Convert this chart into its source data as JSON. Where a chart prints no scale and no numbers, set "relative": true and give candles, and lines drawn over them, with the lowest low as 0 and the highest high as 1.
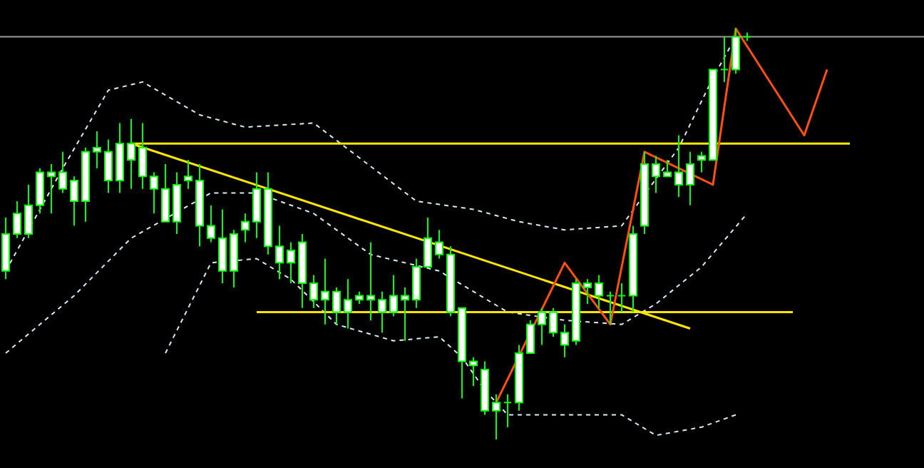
{
  "chart_data": {
    "type": "candlestick",
    "relative": true,
    "color": "#00ff00",
    "tick_labels": false,
    "categories": [
      null,
      null,
      null,
      null,
      null,
      null,
      null,
      null,
      null,
      null,
      null,
      null,
      null,
      null,
      null,
      null,
      null,
      null,
      null,
      null,
      null,
      null,
      null,
      null,
      null,
      null,
      null,
      null,
      null,
      null,
      null,
      null,
      null,
      null,
      null,
      null,
      null,
      null,
      null,
      null,
      null,
      null,
      null,
      null,
      null,
      null,
      null,
      null,
      null,
      null,
      null,
      null,
      null,
      null,
      null,
      null,
      null,
      null,
      null,
      null,
      null,
      null,
      null,
      null,
      null,
      null,
      null,
      null,
      null,
      null,
      null,
      null,
      null,
      null,
      null,
      null,
      null,
      null,
      null,
      null,
      null
    ],
    "ohlc": [
      [
        0.41,
        0.54,
        0.39,
        0.5
      ],
      [
        0.5,
        0.58,
        0.49,
        0.55
      ],
      [
        0.5,
        0.62,
        0.49,
        0.57
      ],
      [
        0.57,
        0.66,
        0.55,
        0.65
      ],
      [
        0.64,
        0.67,
        0.55,
        0.65
      ],
      [
        0.61,
        0.7,
        0.6,
        0.65
      ],
      [
        0.58,
        0.64,
        0.52,
        0.63
      ],
      [
        0.58,
        0.71,
        0.53,
        0.7
      ],
      [
        0.7,
        0.75,
        0.66,
        0.71
      ],
      [
        0.63,
        0.73,
        0.6,
        0.7
      ],
      [
        0.63,
        0.77,
        0.6,
        0.72
      ],
      [
        0.68,
        0.78,
        0.61,
        0.72
      ],
      [
        0.64,
        0.77,
        0.61,
        0.71
      ],
      [
        0.61,
        0.65,
        0.55,
        0.64
      ],
      [
        0.53,
        0.67,
        0.53,
        0.61
      ],
      [
        0.53,
        0.65,
        0.5,
        0.62
      ],
      [
        0.63,
        0.68,
        0.61,
        0.64
      ],
      [
        0.52,
        0.67,
        0.47,
        0.63
      ],
      [
        0.49,
        0.57,
        0.48,
        0.52
      ],
      [
        0.41,
        0.56,
        0.38,
        0.49
      ],
      [
        0.41,
        0.51,
        0.37,
        0.5
      ],
      [
        0.51,
        0.55,
        0.48,
        0.53
      ],
      [
        0.53,
        0.65,
        0.49,
        0.61
      ],
      [
        0.47,
        0.65,
        0.45,
        0.61
      ],
      [
        0.43,
        0.52,
        0.39,
        0.47
      ],
      [
        0.43,
        0.48,
        0.38,
        0.46
      ],
      [
        0.38,
        0.5,
        0.32,
        0.48
      ],
      [
        0.34,
        0.4,
        0.32,
        0.38
      ],
      [
        0.34,
        0.44,
        0.28,
        0.36
      ],
      [
        0.31,
        0.37,
        0.28,
        0.36
      ],
      [
        0.31,
        0.39,
        0.27,
        0.34
      ],
      [
        0.34,
        0.36,
        0.33,
        0.35
      ],
      [
        0.34,
        0.48,
        0.29,
        0.35
      ],
      [
        0.31,
        0.36,
        0.26,
        0.34
      ],
      [
        0.31,
        0.4,
        0.3,
        0.35
      ],
      [
        0.34,
        0.37,
        0.24,
        0.35
      ],
      [
        0.34,
        0.44,
        0.32,
        0.42
      ],
      [
        0.42,
        0.54,
        0.42,
        0.49
      ],
      [
        0.45,
        0.51,
        0.44,
        0.48
      ],
      [
        0.31,
        0.47,
        0.3,
        0.45
      ],
      [
        0.19,
        0.32,
        0.1,
        0.32
      ],
      [
        0.18,
        0.2,
        0.13,
        0.19
      ],
      [
        0.07,
        0.19,
        0.06,
        0.17
      ],
      [
        0.07,
        0.11,
        0.0,
        0.09
      ],
      [
        0.09,
        0.11,
        0.03,
        0.09
      ],
      [
        0.09,
        0.23,
        0.07,
        0.21
      ],
      [
        0.21,
        0.29,
        0.21,
        0.28
      ],
      [
        0.28,
        0.32,
        0.23,
        0.31
      ],
      [
        0.26,
        0.32,
        0.25,
        0.31
      ],
      [
        0.23,
        0.28,
        0.2,
        0.26
      ],
      [
        0.24,
        0.39,
        0.23,
        0.38
      ],
      [
        0.37,
        0.39,
        0.33,
        0.38
      ],
      [
        0.35,
        0.4,
        0.32,
        0.38
      ],
      [
        0.35,
        0.36,
        0.28,
        0.35
      ],
      [
        0.35,
        0.38,
        0.31,
        0.35
      ],
      [
        0.35,
        0.52,
        0.31,
        0.5
      ],
      [
        0.52,
        0.7,
        0.5,
        0.67
      ],
      [
        0.64,
        0.69,
        0.6,
        0.67
      ],
      [
        0.64,
        0.68,
        0.64,
        0.65
      ],
      [
        0.62,
        0.74,
        0.59,
        0.65
      ],
      [
        0.62,
        0.7,
        0.57,
        0.67
      ],
      [
        0.68,
        0.7,
        0.65,
        0.69
      ],
      [
        0.68,
        0.9,
        0.68,
        0.9
      ],
      [
        0.9,
        0.98,
        0.87,
        0.9
      ],
      [
        0.9,
        1.0,
        0.89,
        0.98
      ],
      [
        0.98,
        0.99,
        0.97,
        0.98
      ],
      null,
      null,
      null,
      null,
      null,
      null,
      null,
      null,
      null,
      null,
      null,
      null,
      null,
      null,
      null
    ],
    "series": [
      {
        "type": "line",
        "color": "#d8ecf4",
        "line_style": "dashed",
        "values": [
          0.41,
          null,
          null,
          null,
          null,
          0.66,
          null,
          null,
          null,
          0.85,
          null,
          null,
          0.87,
          null,
          null,
          null,
          null,
          0.79,
          null,
          null,
          null,
          0.76,
          null,
          null,
          null,
          null,
          null,
          0.77,
          null,
          null,
          null,
          null,
          null,
          null,
          null,
          null,
          0.58,
          null,
          null,
          null,
          null,
          0.56,
          null,
          null,
          null,
          0.53,
          null,
          null,
          null,
          0.51,
          null,
          null,
          null,
          null,
          0.52,
          null,
          null,
          null,
          null,
          0.71,
          null,
          null,
          0.88,
          null,
          0.98,
          null,
          null,
          null,
          null,
          null,
          null,
          null,
          null,
          null,
          null,
          null,
          null,
          null,
          null,
          null,
          null
        ]
      },
      {
        "type": "line",
        "color": "#d8ecf4",
        "line_style": "dashed",
        "values": [
          0.21,
          null,
          null,
          null,
          null,
          null,
          0.35,
          null,
          null,
          null,
          null,
          0.49,
          null,
          null,
          null,
          null,
          null,
          null,
          0.6,
          null,
          null,
          null,
          0.6,
          null,
          null,
          null,
          null,
          0.55,
          null,
          null,
          null,
          null,
          0.45,
          null,
          null,
          null,
          null,
          null,
          0.41,
          null,
          null,
          null,
          null,
          null,
          0.31,
          null,
          null,
          null,
          null,
          0.29,
          null,
          null,
          null,
          null,
          0.28,
          null,
          null,
          0.33,
          null,
          null,
          null,
          0.42,
          null,
          null,
          null,
          0.55,
          null,
          null,
          null,
          null,
          null,
          null,
          null,
          null,
          null,
          null,
          null,
          null,
          null,
          null,
          null
        ]
      },
      {
        "type": "line",
        "color": "#d8ecf4",
        "line_style": "dashed",
        "values": [
          null,
          null,
          null,
          null,
          null,
          null,
          null,
          null,
          null,
          null,
          null,
          null,
          null,
          null,
          0.21,
          null,
          null,
          null,
          0.43,
          null,
          null,
          null,
          0.44,
          null,
          null,
          0.39,
          null,
          null,
          null,
          0.28,
          null,
          null,
          null,
          null,
          0.24,
          null,
          null,
          null,
          0.25,
          null,
          0.2,
          null,
          0.12,
          null,
          0.06,
          null,
          null,
          null,
          null,
          0.06,
          null,
          null,
          null,
          null,
          0.06,
          null,
          null,
          0.01,
          null,
          null,
          null,
          0.03,
          null,
          null,
          0.06,
          null,
          null,
          null,
          null,
          null,
          null,
          null,
          null,
          null,
          null,
          null,
          null,
          null,
          null,
          null,
          null
        ]
      },
      {
        "type": "line",
        "color": "#ffe600",
        "line_style": "solid",
        "values": [
          null,
          null,
          null,
          null,
          null,
          null,
          null,
          null,
          null,
          null,
          null,
          0.72,
          null,
          null,
          null,
          null,
          null,
          null,
          null,
          null,
          null,
          null,
          null,
          null,
          null,
          null,
          null,
          null,
          null,
          null,
          null,
          null,
          null,
          null,
          null,
          null,
          null,
          null,
          null,
          null,
          null,
          null,
          null,
          null,
          null,
          null,
          null,
          null,
          null,
          null,
          null,
          null,
          null,
          null,
          null,
          null,
          null,
          null,
          null,
          null,
          null,
          null,
          null,
          null,
          null,
          null,
          null,
          null,
          null,
          null,
          null,
          null,
          null,
          null,
          0.72,
          null,
          null,
          null,
          null,
          null,
          null
        ]
      },
      {
        "type": "line",
        "color": "#ffe600",
        "line_style": "solid",
        "values": [
          null,
          null,
          null,
          null,
          null,
          null,
          null,
          null,
          null,
          null,
          null,
          0.72,
          null,
          null,
          null,
          null,
          null,
          null,
          null,
          null,
          null,
          null,
          null,
          null,
          null,
          null,
          null,
          null,
          null,
          null,
          null,
          null,
          null,
          null,
          null,
          null,
          null,
          null,
          null,
          null,
          null,
          null,
          null,
          null,
          null,
          null,
          null,
          null,
          null,
          null,
          null,
          null,
          null,
          null,
          null,
          null,
          null,
          null,
          null,
          null,
          0.27,
          null,
          null,
          null,
          null,
          null,
          null,
          null,
          null,
          null,
          null,
          null,
          null,
          null,
          null,
          null,
          null,
          null,
          null,
          null,
          null
        ]
      },
      {
        "type": "line",
        "color": "#ffe600",
        "line_style": "solid",
        "values": [
          null,
          null,
          null,
          null,
          null,
          null,
          null,
          null,
          null,
          null,
          null,
          null,
          null,
          null,
          null,
          null,
          null,
          null,
          null,
          null,
          null,
          null,
          0.31,
          null,
          null,
          null,
          null,
          null,
          null,
          null,
          null,
          null,
          null,
          null,
          null,
          null,
          null,
          null,
          null,
          null,
          null,
          null,
          null,
          null,
          null,
          null,
          null,
          null,
          null,
          null,
          null,
          null,
          null,
          null,
          null,
          null,
          null,
          null,
          null,
          null,
          null,
          null,
          null,
          null,
          null,
          null,
          null,
          null,
          null,
          0.31,
          null,
          null,
          null,
          null,
          null,
          null,
          null,
          null,
          null,
          null,
          null
        ]
      },
      {
        "type": "line",
        "color": "#ff5014",
        "line_style": "solid",
        "values": [
          null,
          null,
          null,
          null,
          null,
          null,
          null,
          null,
          null,
          null,
          null,
          null,
          null,
          null,
          null,
          null,
          null,
          null,
          null,
          null,
          null,
          null,
          null,
          null,
          null,
          null,
          null,
          null,
          null,
          null,
          null,
          null,
          null,
          null,
          null,
          null,
          null,
          null,
          null,
          null,
          null,
          null,
          null,
          0.09,
          null,
          null,
          null,
          null,
          null,
          0.43,
          null,
          null,
          null,
          0.28,
          null,
          null,
          0.7,
          null,
          null,
          null,
          null,
          null,
          0.62,
          null,
          1.0,
          null,
          null,
          null,
          null,
          null,
          0.74,
          null,
          0.9,
          null,
          null,
          null,
          null,
          null,
          null,
          null,
          null
        ]
      }
    ],
    "ref_lines": [
      {
        "axis": "y",
        "value": 0.98,
        "color": "#9a9a9a"
      }
    ]
  }
}
